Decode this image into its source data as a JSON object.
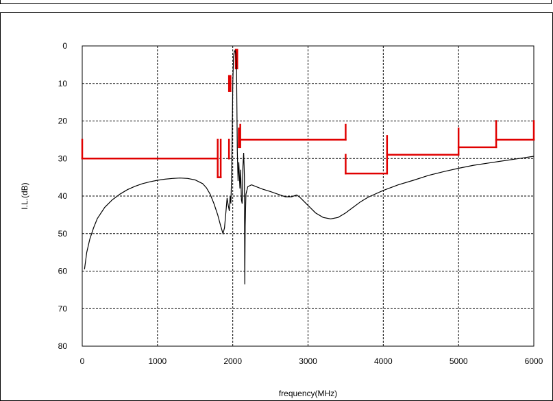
{
  "chart_data": {
    "type": "line",
    "title": "",
    "xlabel": "frequency(MHz)",
    "ylabel": "I.L.(dB)",
    "xlim": [
      0,
      6000
    ],
    "ylim": [
      0,
      80
    ],
    "y_inverted": true,
    "grid": true,
    "x_ticks": [
      0,
      1000,
      2000,
      3000,
      4000,
      5000,
      6000
    ],
    "y_ticks": [
      0,
      10,
      20,
      30,
      40,
      50,
      60,
      70,
      80
    ],
    "colors": {
      "response": "#000000",
      "mask": "#e00000",
      "grid": "#000000"
    },
    "series": [
      {
        "color": "#000000",
        "points": [
          [
            30,
            59.5
          ],
          [
            60,
            55
          ],
          [
            100,
            51.5
          ],
          [
            150,
            48.5
          ],
          [
            200,
            46
          ],
          [
            300,
            43
          ],
          [
            400,
            41
          ],
          [
            500,
            39.5
          ],
          [
            600,
            38.3
          ],
          [
            700,
            37.4
          ],
          [
            800,
            36.7
          ],
          [
            900,
            36.2
          ],
          [
            1000,
            35.8
          ],
          [
            1100,
            35.5
          ],
          [
            1200,
            35.3
          ],
          [
            1300,
            35.2
          ],
          [
            1400,
            35.3
          ],
          [
            1500,
            35.7
          ],
          [
            1600,
            36.7
          ],
          [
            1650,
            37.8
          ],
          [
            1700,
            39.5
          ],
          [
            1750,
            42
          ],
          [
            1800,
            45
          ],
          [
            1840,
            48
          ],
          [
            1870,
            50
          ],
          [
            1890,
            48.5
          ],
          [
            1910,
            44
          ],
          [
            1925,
            40.5
          ],
          [
            1940,
            42.5
          ],
          [
            1955,
            44
          ],
          [
            1965,
            40
          ],
          [
            1975,
            42
          ],
          [
            1985,
            35
          ],
          [
            1995,
            20
          ],
          [
            2000,
            10
          ],
          [
            2010,
            3
          ],
          [
            2020,
            1.5
          ],
          [
            2030,
            1.2
          ],
          [
            2040,
            2
          ],
          [
            2050,
            6
          ],
          [
            2060,
            28
          ],
          [
            2070,
            36
          ],
          [
            2080,
            31
          ],
          [
            2095,
            38
          ],
          [
            2105,
            33
          ],
          [
            2115,
            41
          ],
          [
            2125,
            42
          ],
          [
            2135,
            32
          ],
          [
            2145,
            28.5
          ],
          [
            2155,
            35
          ],
          [
            2160,
            63.5
          ],
          [
            2165,
            48
          ],
          [
            2175,
            39.5
          ],
          [
            2200,
            37.5
          ],
          [
            2250,
            37
          ],
          [
            2300,
            37.4
          ],
          [
            2400,
            38.2
          ],
          [
            2500,
            38.8
          ],
          [
            2600,
            39.5
          ],
          [
            2700,
            40.2
          ],
          [
            2780,
            40.2
          ],
          [
            2850,
            39.7
          ],
          [
            2900,
            40.5
          ],
          [
            3000,
            42.5
          ],
          [
            3100,
            44.5
          ],
          [
            3200,
            45.7
          ],
          [
            3300,
            46.1
          ],
          [
            3400,
            45.7
          ],
          [
            3500,
            44.5
          ],
          [
            3600,
            43
          ],
          [
            3700,
            41.5
          ],
          [
            3800,
            40.3
          ],
          [
            4000,
            38.5
          ],
          [
            4200,
            37
          ],
          [
            4400,
            35.8
          ],
          [
            4600,
            34.5
          ],
          [
            4800,
            33.5
          ],
          [
            5000,
            32.6
          ],
          [
            5200,
            31.8
          ],
          [
            5400,
            31.2
          ],
          [
            5600,
            30.6
          ],
          [
            5800,
            30
          ],
          [
            6000,
            29.4
          ]
        ]
      },
      {
        "color": "#e00000",
        "segments": [
          [
            [
              0,
              25
            ],
            [
              0,
              30
            ]
          ],
          [
            [
              0,
              30
            ],
            [
              1800,
              30
            ]
          ],
          [
            [
              1800,
              25
            ],
            [
              1800,
              35
            ]
          ],
          [
            [
              1840,
              25
            ],
            [
              1840,
              35
            ]
          ],
          [
            [
              1800,
              35
            ],
            [
              1840,
              35
            ]
          ],
          [
            [
              1950,
              25
            ],
            [
              1950,
              30
            ]
          ],
          [
            [
              1950,
              8
            ],
            [
              1950,
              12
            ]
          ],
          [
            [
              1970,
              8
            ],
            [
              1970,
              12
            ]
          ],
          [
            [
              2040,
              1
            ],
            [
              2040,
              6
            ]
          ],
          [
            [
              2060,
              1
            ],
            [
              2060,
              6
            ]
          ],
          [
            [
              2080,
              22
            ],
            [
              2080,
              27
            ]
          ],
          [
            [
              2100,
              21
            ],
            [
              2100,
              27
            ]
          ],
          [
            [
              2100,
              25
            ],
            [
              3500,
              25
            ]
          ],
          [
            [
              3500,
              21
            ],
            [
              3500,
              25
            ]
          ],
          [
            [
              3500,
              29
            ],
            [
              3500,
              34
            ]
          ],
          [
            [
              3500,
              34
            ],
            [
              4050,
              34
            ]
          ],
          [
            [
              4050,
              24
            ],
            [
              4050,
              34
            ]
          ],
          [
            [
              4050,
              29
            ],
            [
              5000,
              29
            ]
          ],
          [
            [
              5000,
              22
            ],
            [
              5000,
              29
            ]
          ],
          [
            [
              5000,
              27
            ],
            [
              5500,
              27
            ]
          ],
          [
            [
              5500,
              20
            ],
            [
              5500,
              27
            ]
          ],
          [
            [
              5500,
              25
            ],
            [
              6000,
              25
            ]
          ],
          [
            [
              6000,
              20
            ],
            [
              6000,
              25
            ]
          ]
        ]
      }
    ]
  }
}
